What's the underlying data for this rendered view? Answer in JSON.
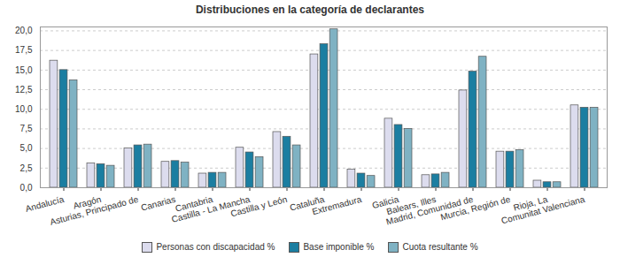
{
  "chart_data": {
    "type": "bar",
    "title": "Distribuciones en la categoría de declarantes",
    "categories": [
      "Andalucía",
      "Aragón",
      "Asturias, Principado de",
      "Canarias",
      "Cantabria",
      "Castilla - La Mancha",
      "Castilla y León",
      "Cataluña",
      "Extremadura",
      "Galicia",
      "Balears, Illes",
      "Madrid, Comunidad de",
      "Murcia, Región de",
      "Rioja, La",
      "Comunitat Valenciana"
    ],
    "series": [
      {
        "name": "Personas con discapacidad %",
        "color": "#dcdcee",
        "values": [
          16.2,
          3.1,
          5.0,
          3.3,
          1.8,
          5.1,
          7.1,
          17.0,
          2.3,
          8.8,
          1.6,
          12.4,
          4.6,
          0.9,
          10.5
        ]
      },
      {
        "name": "Base imponible %",
        "color": "#1b7ea1",
        "values": [
          15.0,
          3.0,
          5.4,
          3.4,
          1.9,
          4.5,
          6.5,
          18.3,
          1.8,
          8.0,
          1.7,
          14.8,
          4.6,
          0.7,
          10.2
        ]
      },
      {
        "name": "Cuota resultante %",
        "color": "#7fb2c3",
        "values": [
          13.7,
          2.8,
          5.5,
          3.2,
          1.9,
          3.9,
          5.4,
          20.2,
          1.5,
          7.5,
          1.9,
          16.7,
          4.8,
          0.7,
          10.2
        ]
      }
    ],
    "ylim": [
      0,
      20.5
    ],
    "yticks": [
      {
        "value": 0,
        "label": "0,0"
      },
      {
        "value": 2.5,
        "label": "2,5"
      },
      {
        "value": 5,
        "label": "5,0"
      },
      {
        "value": 7.5,
        "label": "7,5"
      },
      {
        "value": 10,
        "label": "10,0"
      },
      {
        "value": 12.5,
        "label": "12,5"
      },
      {
        "value": 15,
        "label": "15,0"
      },
      {
        "value": 17.5,
        "label": "17,5"
      },
      {
        "value": 20,
        "label": "20,0"
      }
    ],
    "grid": true,
    "legend": "bottom"
  }
}
